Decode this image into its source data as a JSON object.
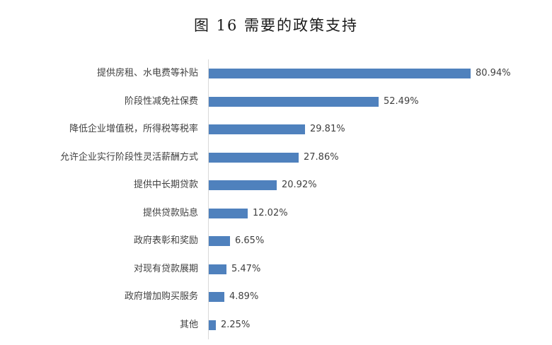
{
  "chart_data": {
    "type": "bar",
    "orientation": "horizontal",
    "title": "图 16 需要的政策支持",
    "xlabel": "",
    "ylabel": "",
    "categories": [
      "提供房租、水电费等补贴",
      "阶段性减免社保费",
      "降低企业增值税，所得税等税率",
      "允许企业实行阶段性灵活薪酬方式",
      "提供中长期贷款",
      "提供贷款贴息",
      "政府表彰和奖励",
      "对现有贷款展期",
      "政府增加购买服务",
      "其他"
    ],
    "values": [
      80.94,
      52.49,
      29.81,
      27.86,
      20.92,
      12.02,
      6.65,
      5.47,
      4.89,
      2.25
    ],
    "value_labels": [
      "80.94%",
      "52.49%",
      "29.81%",
      "27.86%",
      "20.92%",
      "12.02%",
      "6.65%",
      "5.47%",
      "4.89%",
      "2.25%"
    ],
    "unit": "%",
    "grid": false,
    "legend": "none",
    "bar_color": "#4f81bd",
    "xlim": [
      0,
      85
    ]
  }
}
